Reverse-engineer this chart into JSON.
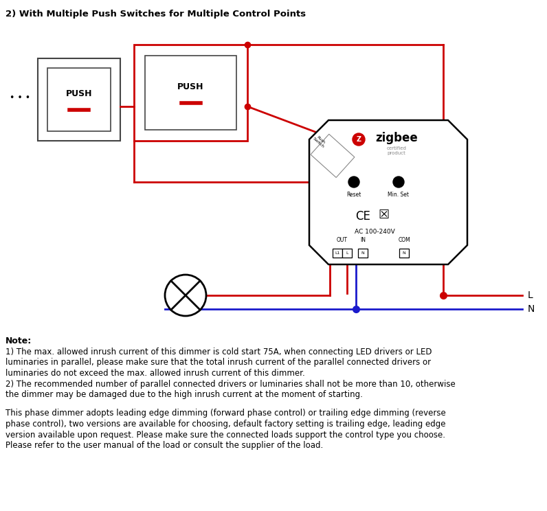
{
  "title": "2) With Multiple Push Switches for Multiple Control Points",
  "bg_color": "#ffffff",
  "red": "#cc0000",
  "blue": "#1a1acc",
  "black": "#000000",
  "darkgray": "#444444",
  "gray": "#888888",
  "note_bold": "Note:",
  "note1_line1": "1) The max. allowed inrush current of this dimmer is cold start 75A, when connecting LED drivers or LED",
  "note1_line2": "luminaries in parallel, please make sure that the total inrush current of the parallel connected drivers or",
  "note1_line3": "luminaries do not exceed the max. allowed inrush current of this dimmer.",
  "note1_line4": "2) The recommended number of parallel connected drivers or luminaries shall not be more than 10, otherwise",
  "note1_line5": "the dimmer may be damaged due to the high inrush current at the moment of starting.",
  "note2_line1": "This phase dimmer adopts leading edge dimming (forward phase control) or trailing edge dimming (reverse",
  "note2_line2": "phase control), two versions are available for choosing, default factory setting is trailing edge, leading edge",
  "note2_line3": "version available upon request. Please make sure the connected loads support the control type you choose.",
  "note2_line4": "Please refer to the user manual of the load or consult the supplier of the load."
}
